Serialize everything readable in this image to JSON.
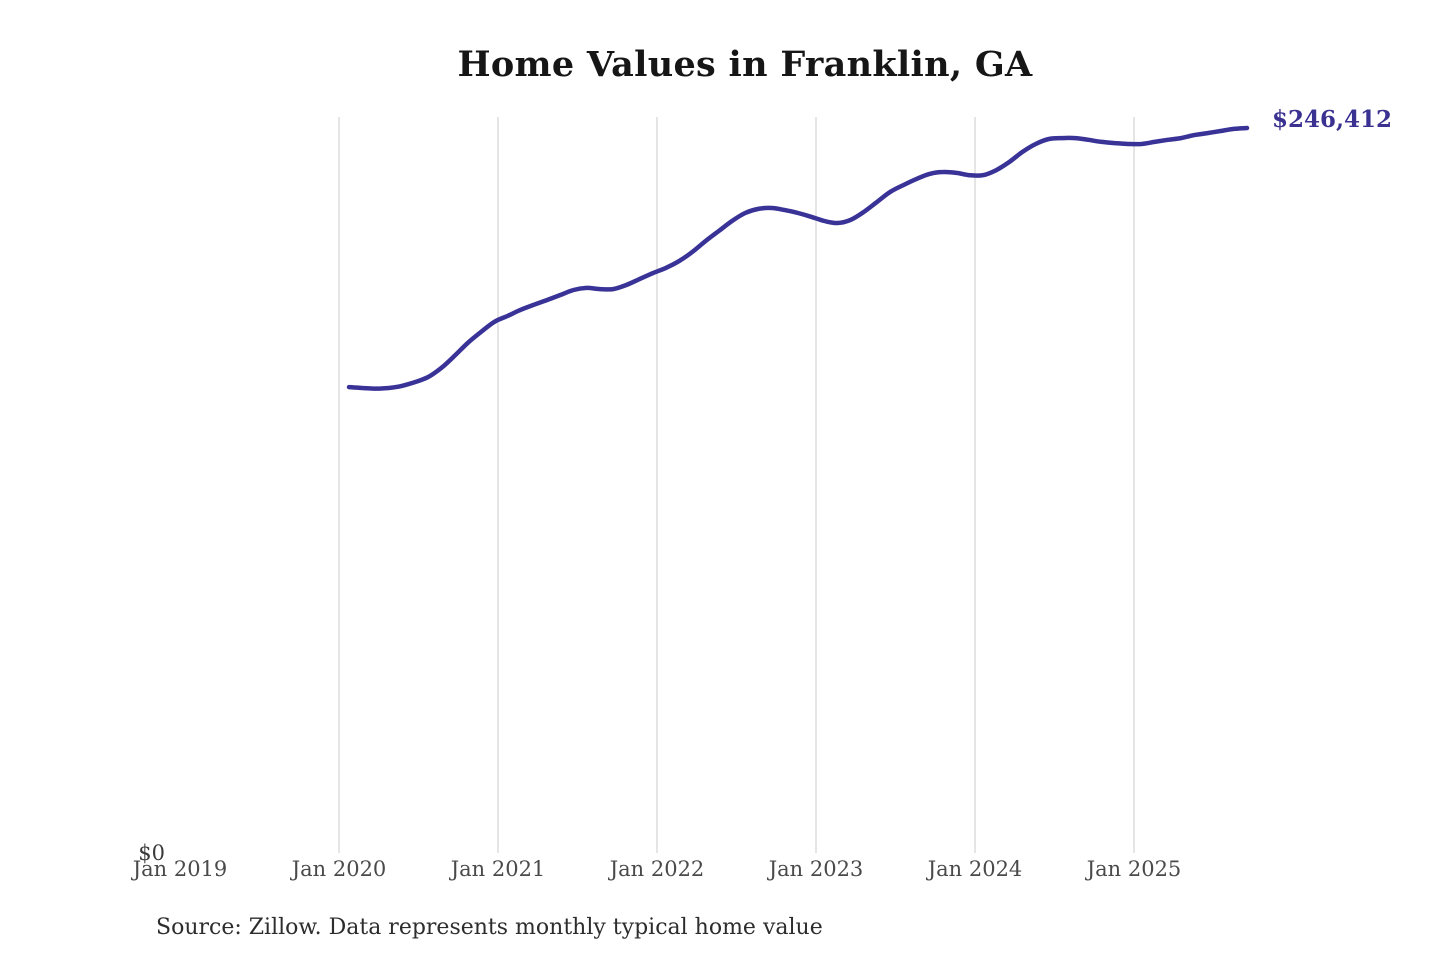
{
  "page": {
    "title": "Home Values in Franklin, GA",
    "source_note": "Source: Zillow. Data represents monthly typical home value"
  },
  "axes": {
    "y_zero_label": "$0",
    "x_tick_labels": [
      "Jan 2019",
      "Jan 2020",
      "Jan 2021",
      "Jan 2022",
      "Jan 2023",
      "Jan 2024",
      "Jan 2025"
    ]
  },
  "end_label": "$246,412",
  "colors": {
    "line": "#3a3397",
    "end_label": "#3a3191",
    "grid": "#cbcbcb",
    "title": "#161616",
    "tick_label": "#4a4a4a",
    "source": "#2d2d2d"
  },
  "chart_data": {
    "type": "line",
    "title": "Home Values in Franklin, GA",
    "xlabel": "",
    "ylabel": "",
    "y_axis": {
      "min": 0,
      "visible_ticks": [
        "$0"
      ]
    },
    "x_axis": {
      "visible_ticks": [
        "Jan 2019",
        "Jan 2020",
        "Jan 2021",
        "Jan 2022",
        "Jan 2023",
        "Jan 2024",
        "Jan 2025"
      ],
      "gridline_ticks": [
        "Jan 2020",
        "Jan 2021",
        "Jan 2022",
        "Jan 2023",
        "Jan 2024",
        "Jan 2025"
      ]
    },
    "legend": "none",
    "annotations": [
      {
        "text": "$246,412",
        "attached_to": "last-point"
      }
    ],
    "series": [
      {
        "name": "Monthly typical home value",
        "unit": "USD",
        "last_value": 246412,
        "months": [
          "2020-01",
          "2020-02",
          "2020-03",
          "2020-04",
          "2020-05",
          "2020-06",
          "2020-07",
          "2020-08",
          "2020-09",
          "2020-10",
          "2020-11",
          "2020-12",
          "2021-01",
          "2021-02",
          "2021-03",
          "2021-04",
          "2021-05",
          "2021-06",
          "2021-07",
          "2021-08",
          "2021-09",
          "2021-10",
          "2021-11",
          "2021-12",
          "2022-01",
          "2022-02",
          "2022-03",
          "2022-04",
          "2022-05",
          "2022-06",
          "2022-07",
          "2022-08",
          "2022-09",
          "2022-10",
          "2022-11",
          "2022-12",
          "2023-01",
          "2023-02",
          "2023-03",
          "2023-04",
          "2023-05",
          "2023-06",
          "2023-07",
          "2023-08",
          "2023-09",
          "2023-10",
          "2023-11",
          "2023-12",
          "2024-01",
          "2024-02",
          "2024-03",
          "2024-04",
          "2024-05",
          "2024-06",
          "2024-07",
          "2024-08",
          "2024-09",
          "2024-10",
          "2024-11",
          "2024-12",
          "2025-01",
          "2025-02",
          "2025-03",
          "2025-04",
          "2025-05",
          "2025-06",
          "2025-07",
          "2025-08",
          "2025-09"
        ],
        "values": [
          158600,
          158300,
          158100,
          158300,
          159000,
          160300,
          162000,
          165100,
          169200,
          173600,
          177300,
          180700,
          182700,
          184800,
          186500,
          188100,
          189800,
          191500,
          192200,
          191800,
          191800,
          193200,
          195200,
          197200,
          199000,
          201300,
          204400,
          208100,
          211500,
          214900,
          217600,
          219000,
          219300,
          218600,
          217600,
          216300,
          214900,
          214200,
          215300,
          218000,
          221400,
          224800,
          227100,
          229200,
          230900,
          231500,
          231200,
          230400,
          230400,
          232100,
          234900,
          238300,
          241000,
          242700,
          243000,
          243000,
          242400,
          241700,
          241300,
          241000,
          241000,
          241700,
          242400,
          243000,
          244000,
          244700,
          245400,
          246100,
          246412
        ]
      }
    ]
  }
}
